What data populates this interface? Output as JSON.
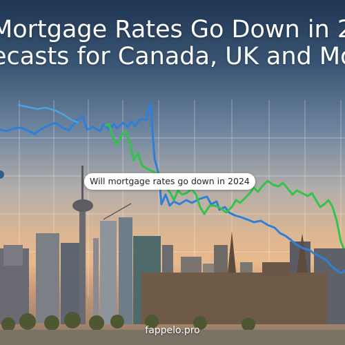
{
  "headline": {
    "line1": "Mortgage Rates Go Down in 2",
    "line2": "ecasts for Canada, UK and Mo"
  },
  "tooltip": {
    "text": "Will mortgage rates go down in 2024"
  },
  "watermark": {
    "text": "fappelo.pro"
  },
  "colors": {
    "blue_line": "#2f7fd6",
    "green_line": "#33c24a",
    "grid": "#ffffff"
  }
}
